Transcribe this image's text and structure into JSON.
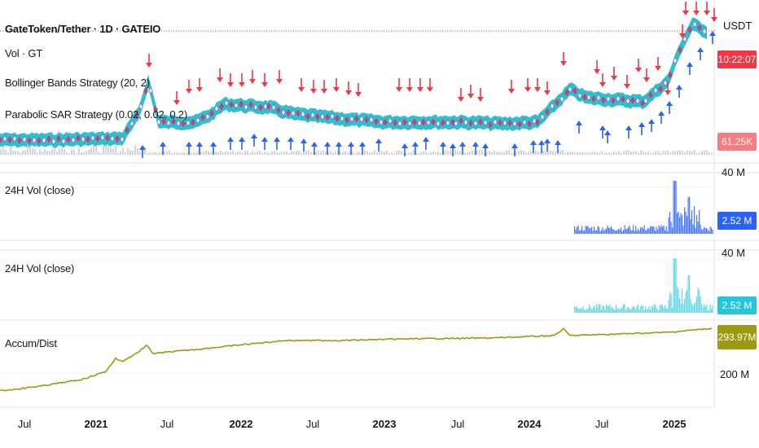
{
  "header": {
    "symbol_title": "GateToken/Tether · 1D · GATEIO",
    "currency": "USDT"
  },
  "indicators": {
    "vol": "Vol · GT",
    "bollinger": "Bollinger Bands Strategy (20, 2)",
    "parabolic": "Parabolic SAR Strategy (0.02, 0.02, 0.2)"
  },
  "price_pane": {
    "countdown_tag": "10:22:07",
    "volume_tag": "61.25K"
  },
  "vol_pane_1": {
    "title": "24H Vol (close)",
    "scale_top": "40 M",
    "last_value": "2.52 M"
  },
  "vol_pane_2": {
    "title": "24H Vol (close)",
    "scale_top": "40 M",
    "last_value": "2.52 M"
  },
  "ad_pane": {
    "title": "Accum/Dist",
    "last_value": "293.97M",
    "scale_low": "200 M"
  },
  "time_axis": [
    {
      "label": "Jul",
      "year": false
    },
    {
      "label": "2021",
      "year": true
    },
    {
      "label": "Jul",
      "year": false
    },
    {
      "label": "2022",
      "year": true
    },
    {
      "label": "Jul",
      "year": false
    },
    {
      "label": "2023",
      "year": true
    },
    {
      "label": "Jul",
      "year": false
    },
    {
      "label": "2024",
      "year": true
    },
    {
      "label": "Jul",
      "year": false
    },
    {
      "label": "2025",
      "year": true
    }
  ],
  "colors": {
    "band_fill": "#26bcc9",
    "sell_arrow": "#f23645",
    "buy_arrow": "#2962ff",
    "volume_blue": "#2962ff",
    "volume_teal": "#4dd0e1",
    "ad_line": "#9c9a13",
    "countdown_bg": "#f23645",
    "volume_tag_bg": "#f77c80",
    "vol1_tag_bg": "#2962ff",
    "vol2_tag_bg": "#26c6da",
    "ad_tag_bg": "#9c9a13"
  }
}
